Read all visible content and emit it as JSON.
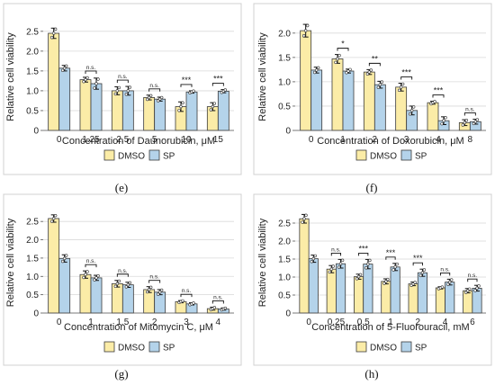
{
  "legend_labels": [
    "DMSO",
    "SP"
  ],
  "colors": {
    "dmso": "#fbeca7",
    "sp": "#b4d3ea",
    "bar_stroke": "#3a3a3a",
    "grid": "#d9d9d9",
    "frame": "#d0d0d0"
  },
  "chart_data": [
    {
      "panel": "(e)",
      "type": "bar",
      "xlabel": "Concentration of Daunorubicin, μM",
      "ylabel": "Relative cell viability",
      "ylim": [
        0,
        2.7
      ],
      "yticks": [
        "0",
        "0.5",
        "1.0",
        "1.5",
        "2.0",
        "2.5"
      ],
      "categories": [
        "0",
        "1.25",
        "2.5",
        "5",
        "10",
        "15"
      ],
      "series": [
        {
          "name": "DMSO",
          "values": [
            2.45,
            1.28,
            1.0,
            0.83,
            0.6,
            0.6
          ],
          "errors": [
            0.13,
            0.06,
            0.1,
            0.06,
            0.12,
            0.1
          ]
        },
        {
          "name": "SP",
          "values": [
            1.57,
            1.18,
            1.0,
            0.79,
            0.97,
            0.99
          ],
          "errors": [
            0.07,
            0.14,
            0.11,
            0.05,
            0.03,
            0.04
          ]
        }
      ],
      "annotations": [
        "n.s.",
        "n.s.",
        "n.s.",
        "***",
        "***"
      ]
    },
    {
      "panel": "(f)",
      "type": "bar",
      "xlabel": "Concentration of Doxorubicin, μM",
      "ylabel": "Relative cell viability",
      "ylim": [
        0,
        2.2
      ],
      "yticks": [
        "0",
        "0.5",
        "1.0",
        "1.5",
        "2.0"
      ],
      "categories": [
        "0",
        "1",
        "2",
        "3",
        "4",
        "8"
      ],
      "series": [
        {
          "name": "DMSO",
          "values": [
            2.05,
            1.47,
            1.2,
            0.89,
            0.57,
            0.16
          ],
          "errors": [
            0.13,
            0.09,
            0.05,
            0.08,
            0.03,
            0.06
          ]
        },
        {
          "name": "SP",
          "values": [
            1.24,
            1.22,
            0.94,
            0.41,
            0.2,
            0.18
          ],
          "errors": [
            0.06,
            0.04,
            0.07,
            0.09,
            0.08,
            0.05
          ]
        }
      ],
      "annotations": [
        "*",
        "**",
        "***",
        "***",
        "n.s."
      ]
    },
    {
      "panel": "(g)",
      "type": "bar",
      "xlabel": "Concentration of Mitomycin C, μM",
      "ylabel": "Relative cell viability",
      "ylim": [
        0,
        2.75
      ],
      "yticks": [
        "0",
        "0.5",
        "1.0",
        "1.5",
        "2.0",
        "2.5"
      ],
      "categories": [
        "0",
        "1",
        "1.5",
        "2",
        "3",
        "4"
      ],
      "series": [
        {
          "name": "DMSO",
          "values": [
            2.58,
            1.05,
            0.8,
            0.64,
            0.31,
            0.12
          ],
          "errors": [
            0.1,
            0.1,
            0.09,
            0.08,
            0.03,
            0.04
          ]
        },
        {
          "name": "SP",
          "values": [
            1.49,
            0.96,
            0.77,
            0.57,
            0.25,
            0.11
          ],
          "errors": [
            0.1,
            0.07,
            0.07,
            0.07,
            0.03,
            0.03
          ]
        }
      ],
      "annotations": [
        "n.s.",
        "n.s.",
        "n.s.",
        "n.s.",
        "n.s."
      ]
    },
    {
      "panel": "(h)",
      "type": "bar",
      "xlabel": "Concentration of 5-Fluorouracil, mM",
      "ylabel": "Relative cell viability",
      "ylim": [
        0,
        2.8
      ],
      "yticks": [
        "0",
        "0.5",
        "1.0",
        "1.5",
        "2.0",
        "2.5"
      ],
      "categories": [
        "0",
        "0.25",
        "0.5",
        "1",
        "2",
        "4",
        "6"
      ],
      "series": [
        {
          "name": "DMSO",
          "values": [
            2.62,
            1.22,
            1.01,
            0.88,
            0.81,
            0.7,
            0.62
          ],
          "errors": [
            0.12,
            0.1,
            0.07,
            0.07,
            0.05,
            0.03,
            0.06
          ]
        },
        {
          "name": "SP",
          "values": [
            1.51,
            1.37,
            1.36,
            1.28,
            1.12,
            0.86,
            0.69
          ],
          "errors": [
            0.1,
            0.12,
            0.13,
            0.1,
            0.1,
            0.08,
            0.08
          ]
        }
      ],
      "annotations": [
        "n.s.",
        "***",
        "***",
        "***",
        "n.s.",
        "n.s."
      ]
    }
  ]
}
